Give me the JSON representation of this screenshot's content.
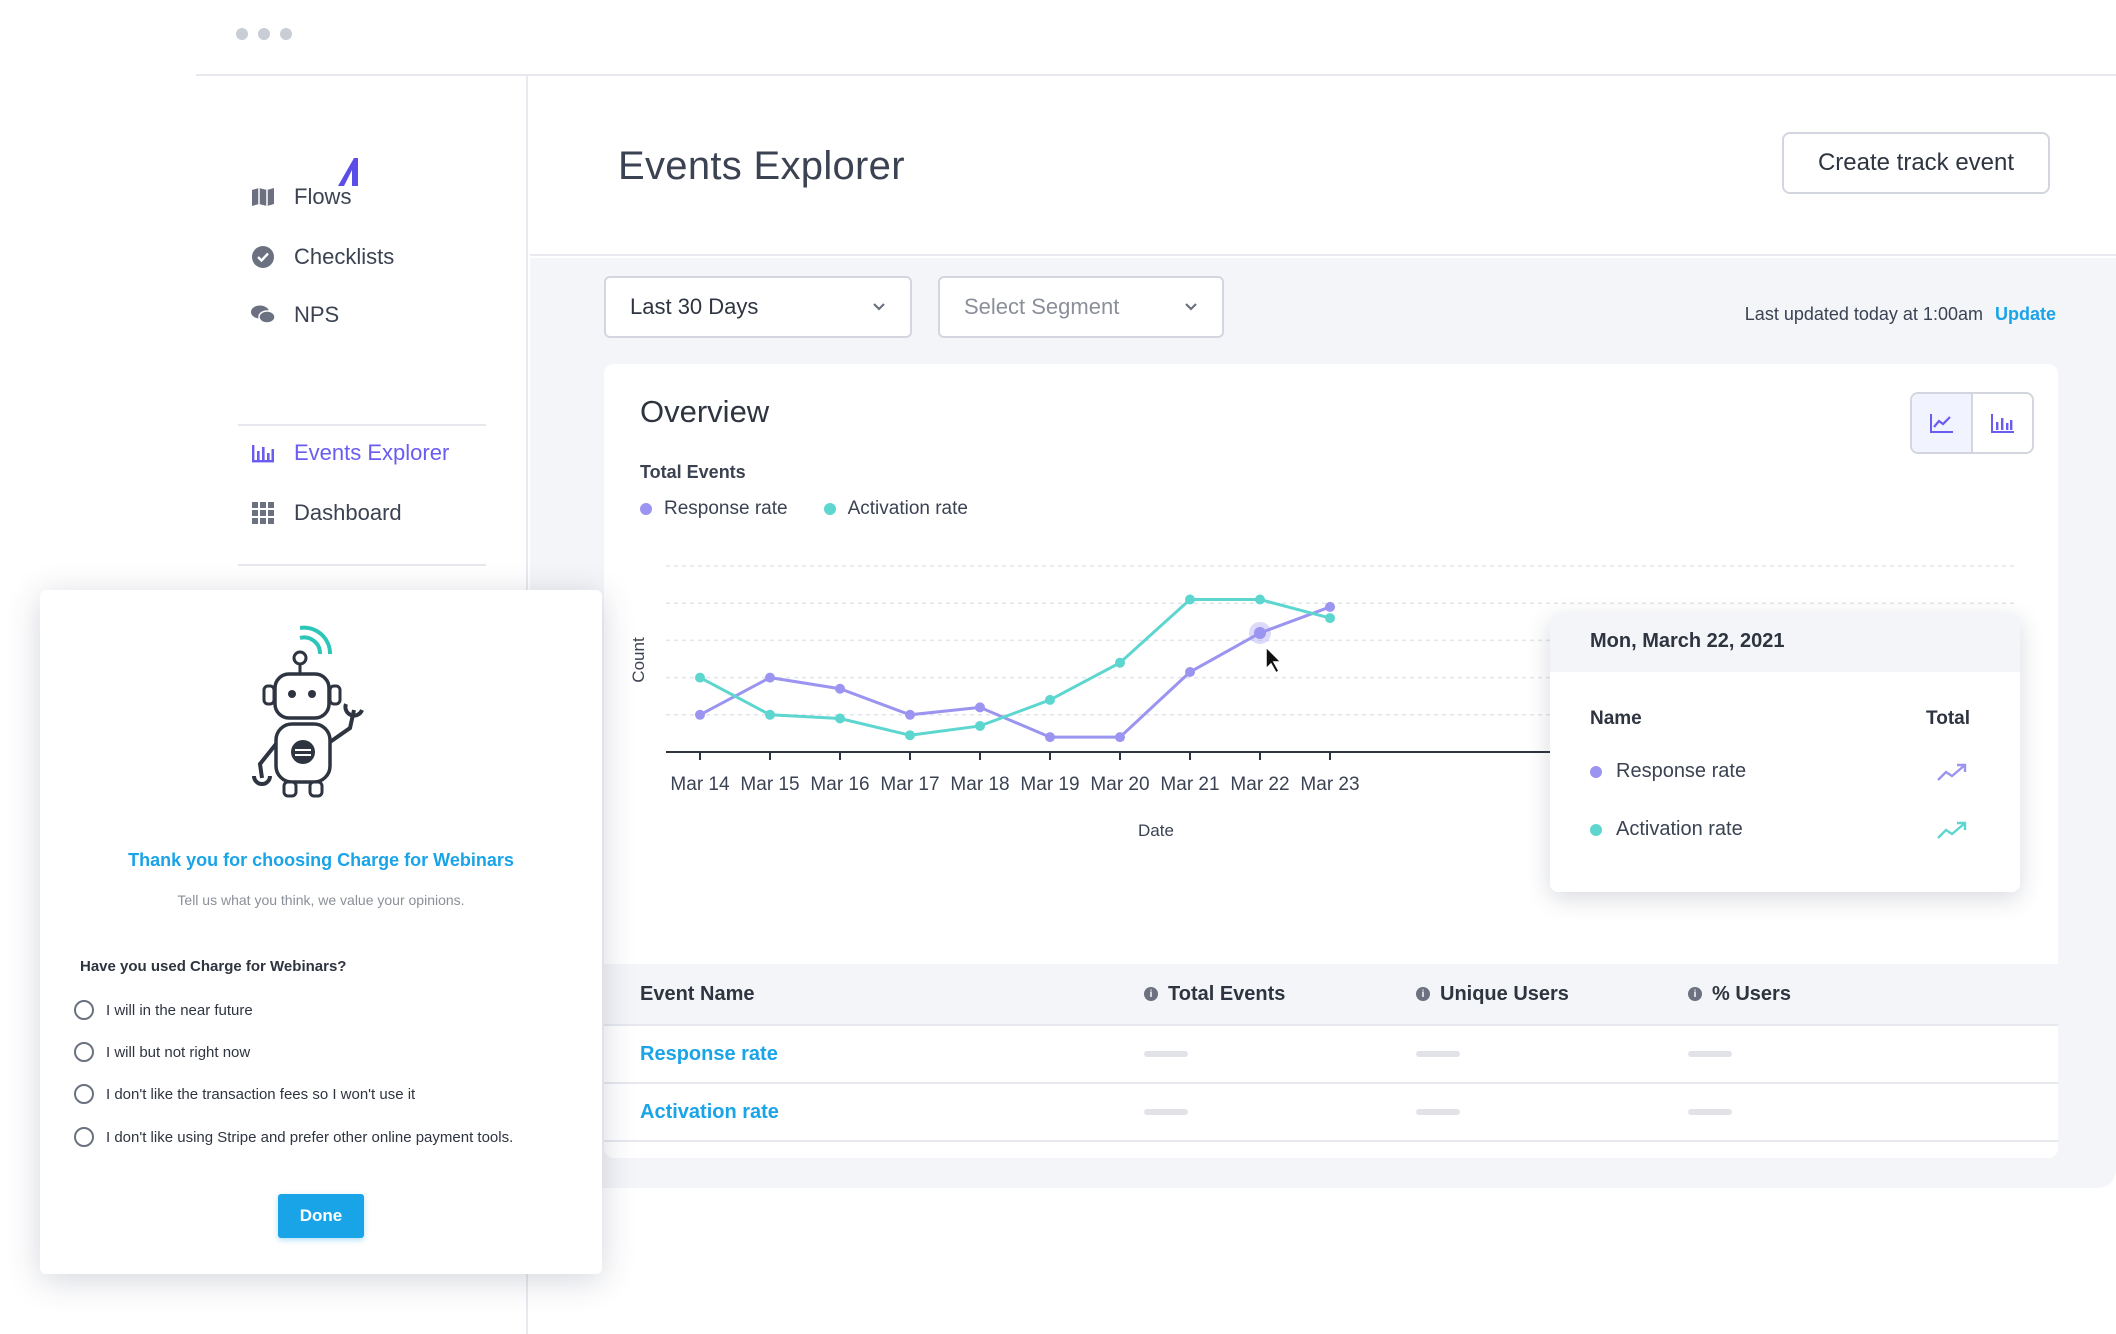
{
  "sidebar": {
    "items": [
      {
        "label": "Flows",
        "icon": "map-icon"
      },
      {
        "label": "Checklists",
        "icon": "check-circle-icon"
      },
      {
        "label": "NPS",
        "icon": "chat-bubbles-icon"
      },
      {
        "label": "Events Explorer",
        "icon": "bar-chart-icon",
        "active": true
      },
      {
        "label": "Dashboard",
        "icon": "grid-icon"
      }
    ]
  },
  "header": {
    "title": "Events Explorer",
    "create_button": "Create track event"
  },
  "filters": {
    "date_range": "Last 30 Days",
    "segment_placeholder": "Select Segment",
    "last_updated": "Last updated today at 1:00am",
    "update_link": "Update"
  },
  "overview": {
    "title": "Overview",
    "total_label": "Total Events",
    "legend": [
      "Response rate",
      "Activation rate"
    ]
  },
  "chart_data": {
    "type": "line",
    "x": [
      "Mar 14",
      "Mar 15",
      "Mar 16",
      "Mar 17",
      "Mar 18",
      "Mar 19",
      "Mar 20",
      "Mar 21",
      "Mar 22",
      "Mar 23"
    ],
    "series": [
      {
        "name": "Response rate",
        "color": "#9b94f0",
        "values": [
          1.0,
          2.0,
          1.7,
          1.0,
          1.2,
          0.4,
          0.4,
          2.15,
          3.2,
          3.9
        ]
      },
      {
        "name": "Activation rate",
        "color": "#5dd6cf",
        "values": [
          2.0,
          1.0,
          0.9,
          0.45,
          0.7,
          1.4,
          2.4,
          4.1,
          4.1,
          3.6
        ]
      }
    ],
    "xlabel": "Date",
    "ylabel": "Count",
    "ylim": [
      0,
      5
    ],
    "grid": true,
    "highlight_index": 8
  },
  "tooltip": {
    "date": "Mon, March 22, 2021",
    "col_name": "Name",
    "col_total": "Total",
    "rows": [
      "Response rate",
      "Activation rate"
    ]
  },
  "table": {
    "headers": [
      "Event Name",
      "Total Events",
      "Unique Users",
      "% Users"
    ],
    "rows": [
      {
        "name": "Response rate"
      },
      {
        "name": "Activation rate"
      }
    ]
  },
  "survey": {
    "title": "Thank you for choosing Charge for Webinars",
    "subtitle": "Tell us what you think, we value your opinions.",
    "question": "Have you used Charge for Webinars?",
    "options": [
      "I will in the near future",
      "I will but not right now",
      "I don't like the transaction fees so I won't use it",
      "I don't like using Stripe and prefer other online payment tools."
    ],
    "done_button": "Done"
  },
  "colors": {
    "accent": "#6a5cf0",
    "link": "#1aa4e8",
    "response": "#9b94f0",
    "activation": "#5dd6cf"
  }
}
